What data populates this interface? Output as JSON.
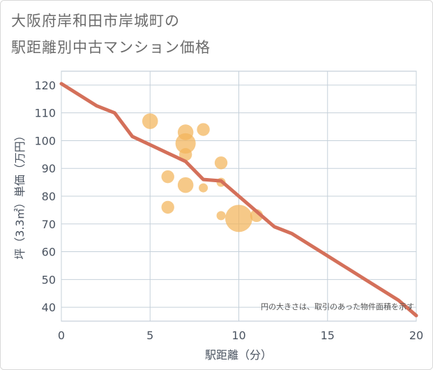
{
  "title_line1": "大阪府岸和田市岸城町の",
  "title_line2": "駅距離別中古マンション価格",
  "chart_data": {
    "type": "scatter",
    "title": "大阪府岸和田市岸城町の駅距離別中古マンション価格",
    "xlabel": "駅距離（分）",
    "ylabel": "坪（3.3㎡）単価（万円）",
    "xlim": [
      0,
      20
    ],
    "ylim": [
      35,
      125
    ],
    "xticks": [
      0,
      5,
      10,
      15,
      20
    ],
    "yticks": [
      40,
      50,
      60,
      70,
      80,
      90,
      100,
      110,
      120
    ],
    "grid": true,
    "annotation": "円の大きさは、取引のあった物件面積を示す",
    "bubble_color": "#f2b45a",
    "line_color": "#d4705a",
    "bubbles": [
      {
        "x": 5,
        "y": 107,
        "size": 3
      },
      {
        "x": 7,
        "y": 103,
        "size": 3
      },
      {
        "x": 7,
        "y": 99,
        "size": 5
      },
      {
        "x": 7,
        "y": 95,
        "size": 2
      },
      {
        "x": 8,
        "y": 104,
        "size": 2
      },
      {
        "x": 9,
        "y": 92,
        "size": 2
      },
      {
        "x": 6,
        "y": 87,
        "size": 2
      },
      {
        "x": 7,
        "y": 84,
        "size": 3
      },
      {
        "x": 8,
        "y": 83,
        "size": 1
      },
      {
        "x": 9,
        "y": 85,
        "size": 1
      },
      {
        "x": 6,
        "y": 76,
        "size": 2
      },
      {
        "x": 9,
        "y": 73,
        "size": 1
      },
      {
        "x": 10,
        "y": 72,
        "size": 9
      },
      {
        "x": 11,
        "y": 73,
        "size": 2
      }
    ],
    "line": {
      "name": "trend",
      "x": [
        0,
        2,
        3,
        4,
        5,
        6,
        7,
        8,
        9,
        10,
        11,
        12,
        13,
        14,
        15,
        16,
        17,
        18,
        19,
        20
      ],
      "y": [
        120.5,
        112.5,
        110,
        101.5,
        98.5,
        95.5,
        92.5,
        86,
        85.5,
        80,
        74.5,
        69,
        66.5,
        62.5,
        58.5,
        54.5,
        50.5,
        46.5,
        42.5,
        37
      ]
    }
  }
}
